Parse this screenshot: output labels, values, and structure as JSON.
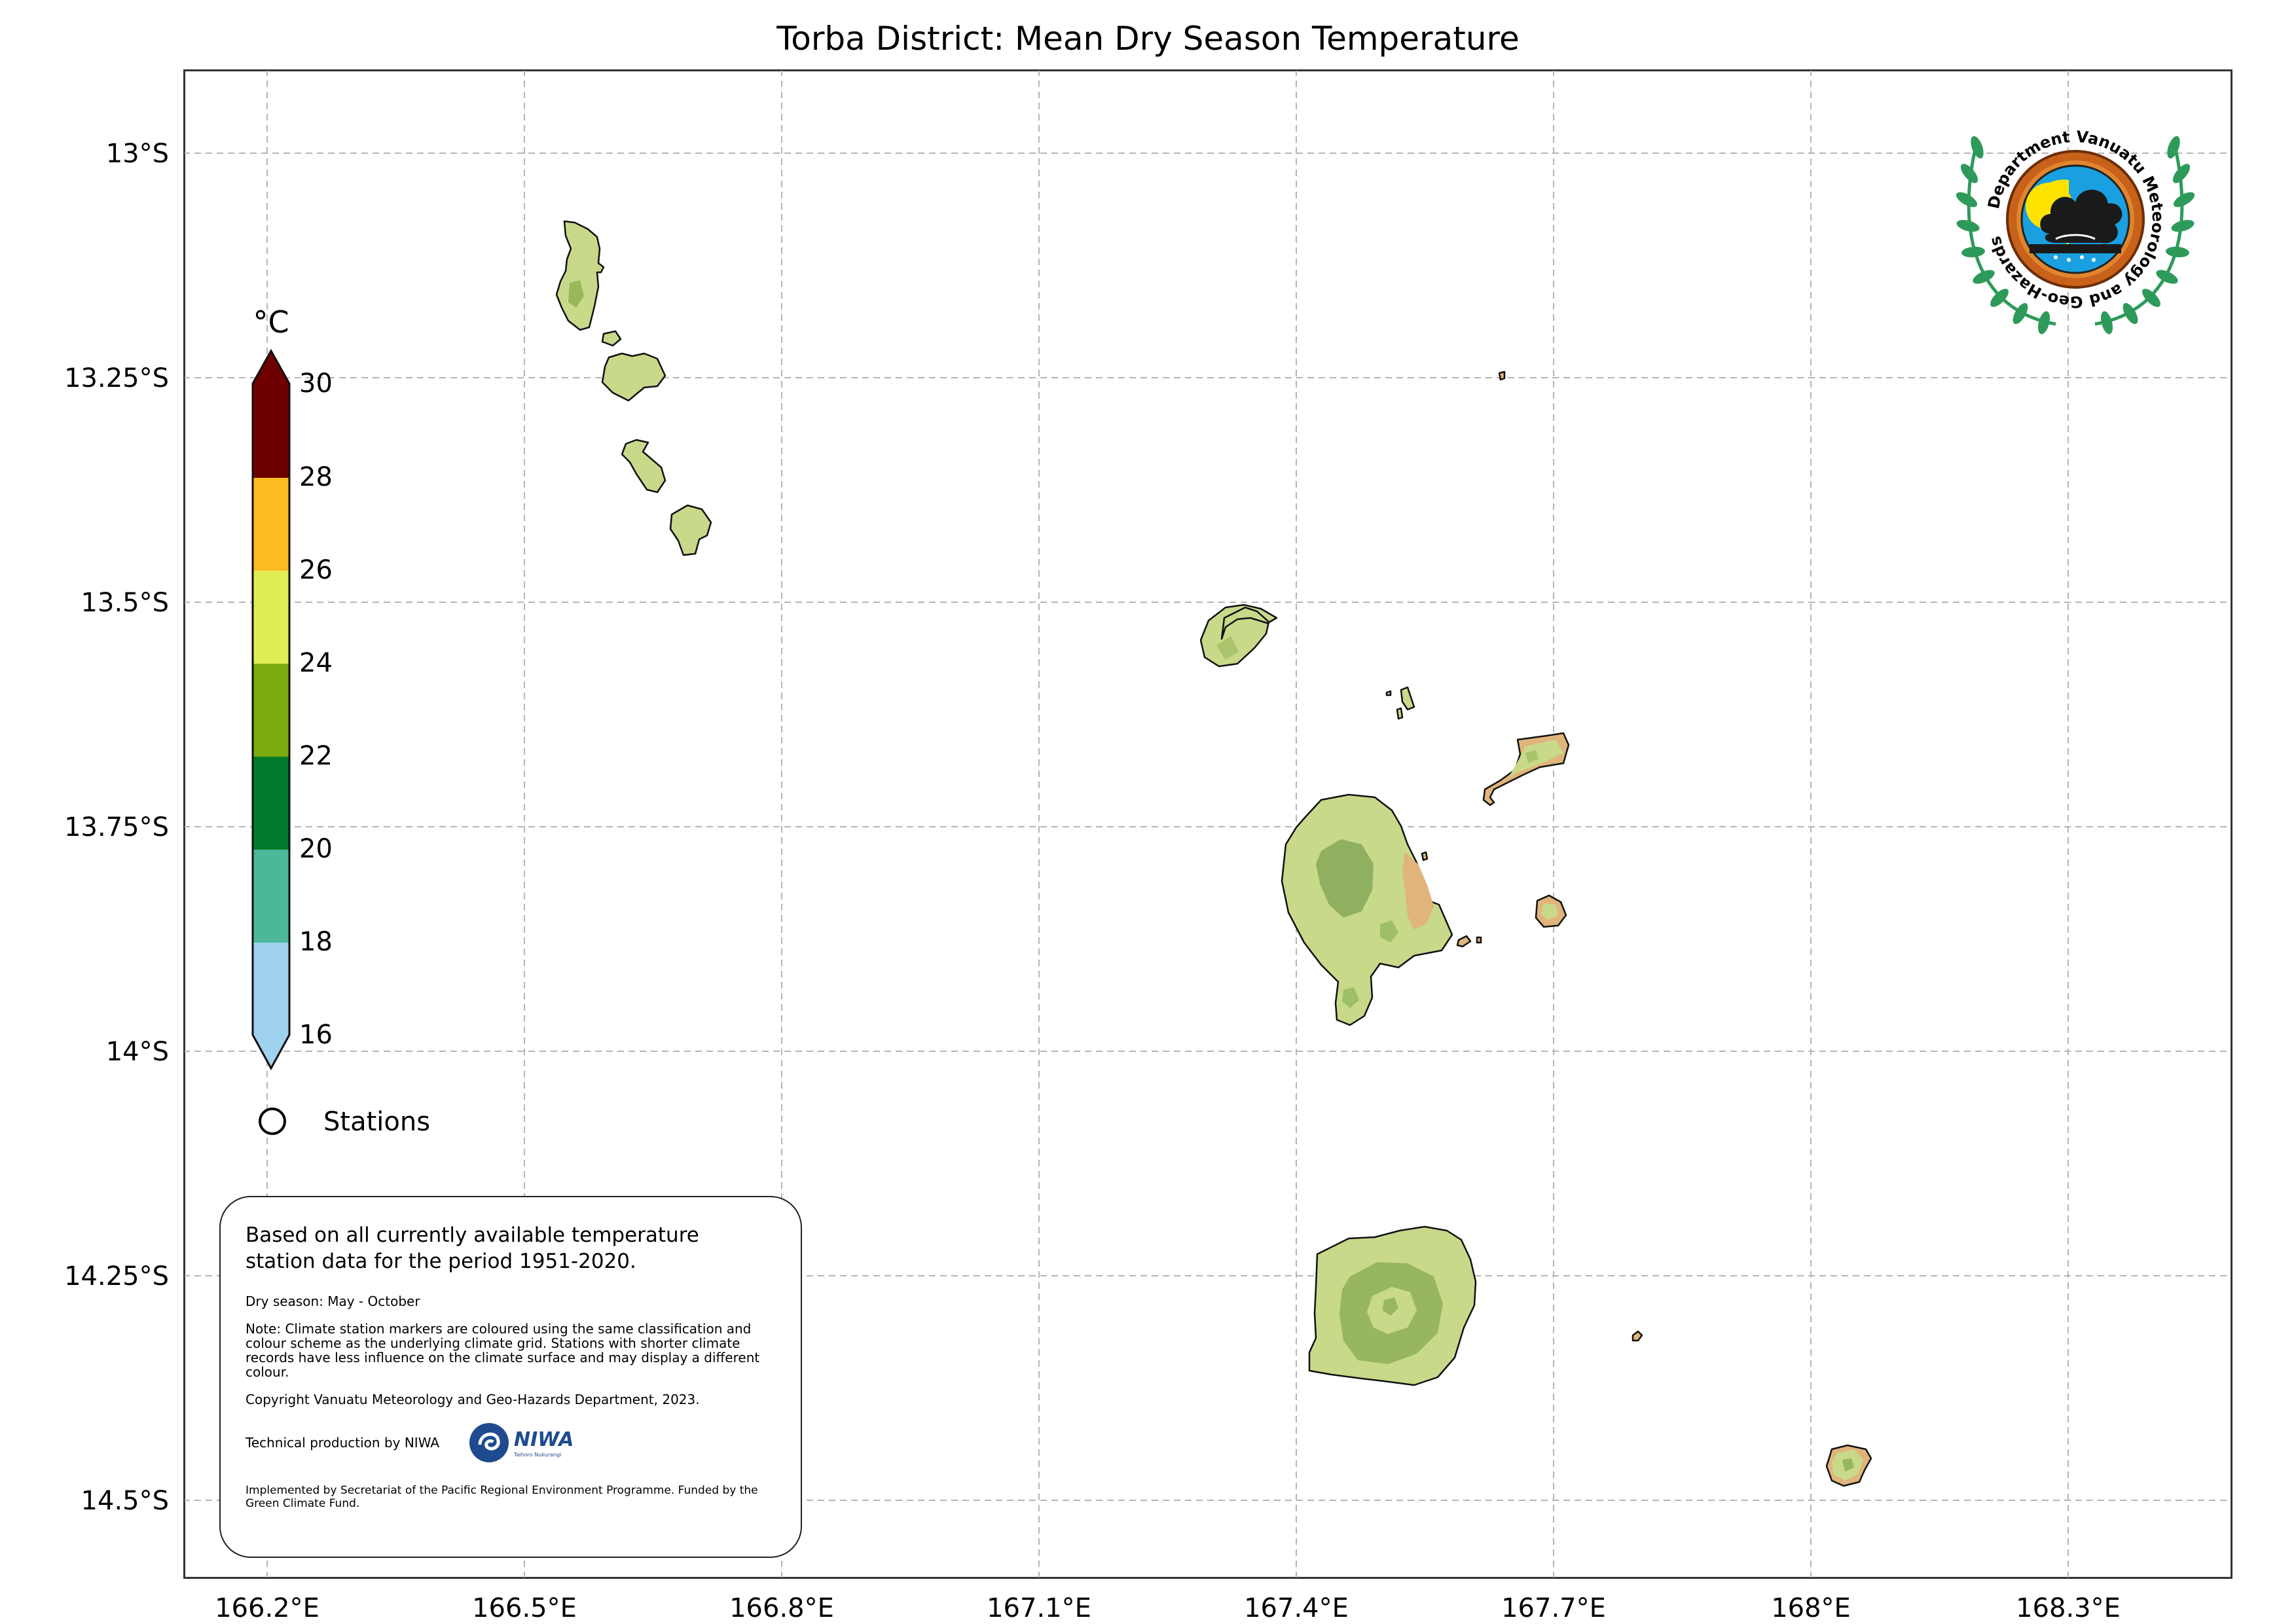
{
  "map": {
    "title": "Torba District: Mean Dry Season Temperature",
    "lon_ticks": [
      "166.2°E",
      "166.5°E",
      "166.8°E",
      "167.1°E",
      "167.4°E",
      "167.7°E",
      "168°E",
      "168.3°E"
    ],
    "lat_ticks": [
      "13°S",
      "13.25°S",
      "13.5°S",
      "13.75°S",
      "14°S",
      "14.25°S",
      "14.5°S"
    ],
    "land_color": "#c8d98a",
    "warm_land_color": "#e0b47a"
  },
  "legend": {
    "unit": "°C",
    "levels": [
      "30",
      "28",
      "26",
      "24",
      "22",
      "20",
      "18",
      "16"
    ],
    "colors": [
      "#6e0000",
      "#ffbb22",
      "#e0ee55",
      "#7aaa10",
      "#007a2a",
      "#4cb89a",
      "#9fd2ee"
    ],
    "stations_label": "Stations"
  },
  "logo": {
    "text": "Department Vanuatu Meteorology and Geo-Hazards"
  },
  "notes": {
    "main": "Based on all currently available temperature station data for the period 1951-2020.",
    "season": "Dry season: May - October",
    "note": "Note: Climate station markers are coloured using the same classification and colour scheme as the underlying climate grid. Stations with shorter climate records have less influence on the climate surface and may display a different colour.",
    "copyright": "Copyright Vanuatu Meteorology and Geo-Hazards Department, 2023.",
    "technical": "Technical production by NIWA",
    "niwa_logo": "NIWA",
    "niwa_tagline": "Taihoro Nukurangi",
    "implemented": "Implemented by Secretariat of the Pacific Regional Environment Programme. Funded by the Green Climate Fund."
  }
}
